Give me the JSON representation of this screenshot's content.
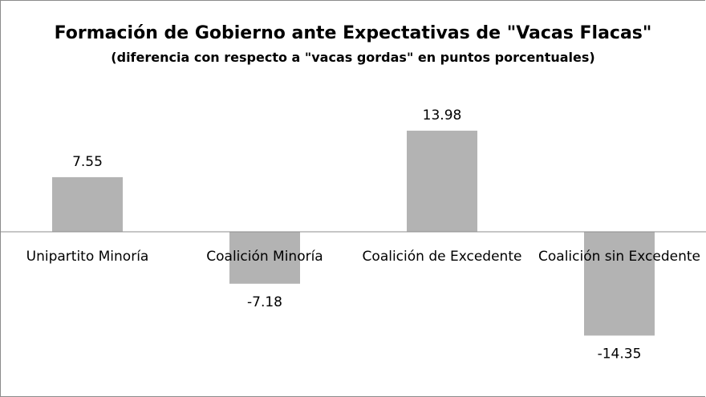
{
  "chart_data": {
    "type": "bar",
    "title": "Formación de Gobierno ante Expectativas de \"Vacas Flacas\"",
    "subtitle": "(diferencia con respecto a \"vacas gordas\" en puntos porcentuales)",
    "categories": [
      "Unipartito Minoría",
      "Coalición Minoría",
      "Coalición de Excedente",
      "Coalición sin Excedente"
    ],
    "values": [
      7.55,
      -7.18,
      13.98,
      -14.35
    ],
    "data_labels": [
      "7.55",
      "-7.18",
      "13.98",
      "-14.35"
    ],
    "ylim": [
      -20,
      20
    ],
    "grid": false,
    "legend": "none",
    "bar_color": "#b3b3b3",
    "axis_color": "#8c8c8c"
  }
}
